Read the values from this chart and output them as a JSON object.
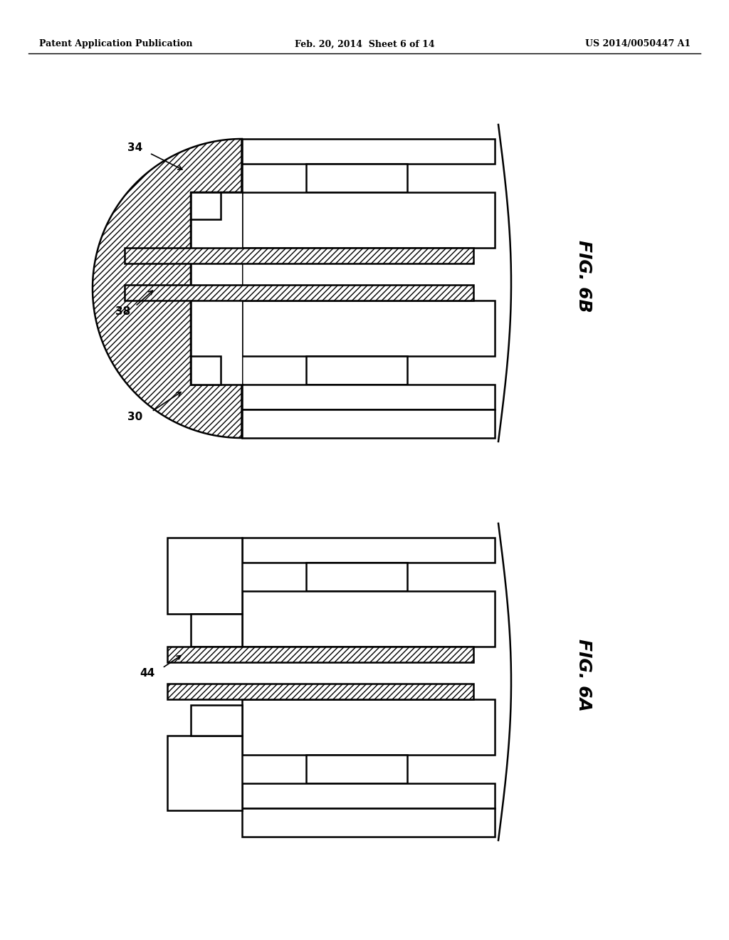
{
  "bg_color": "#ffffff",
  "line_color": "#000000",
  "header_left": "Patent Application Publication",
  "header_mid": "Feb. 20, 2014  Sheet 6 of 14",
  "header_right": "US 2014/0050447 A1",
  "fig6b_label": "FIG. 6B",
  "fig6a_label": "FIG. 6A",
  "label_34": "34",
  "label_38": "38",
  "label_30": "30",
  "label_44": "44"
}
